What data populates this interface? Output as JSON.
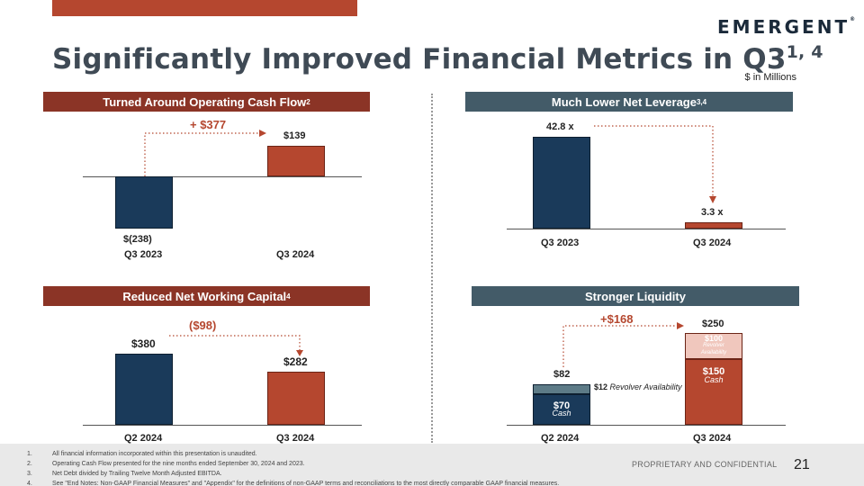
{
  "header": {
    "logo_text": "EMERGENT",
    "logo_mark": "®",
    "title": "Significantly Improved Financial Metrics in Q3",
    "title_sup": "1, 4",
    "units": "$ in Millions"
  },
  "panels": {
    "ocf": {
      "title": "Turned Around Operating Cash Flow",
      "title_sup": "2",
      "delta": "+ $377",
      "value_labels": [
        "$(238)",
        "$139"
      ],
      "categories": [
        "Q3 2023",
        "Q3 2024"
      ]
    },
    "leverage": {
      "title": "Much Lower Net Leverage",
      "title_sup": "3,4",
      "value_labels": [
        "42.8 x",
        "3.3 x"
      ],
      "categories": [
        "Q3 2023",
        "Q3 2024"
      ]
    },
    "nwc": {
      "title": "Reduced Net Working Capital",
      "title_sup": "4",
      "delta": "($98)",
      "value_labels": [
        "$380",
        "$282"
      ],
      "categories": [
        "Q2 2024",
        "Q3 2024"
      ]
    },
    "liquidity": {
      "title": "Stronger Liquidity",
      "delta": "+$168",
      "q2_total": "$82",
      "q2_cash_value": "$70",
      "q2_cash_label": "Cash",
      "q2_revolver_value": "$12",
      "q2_revolver_label": "Revolver Availability",
      "q3_total": "$250",
      "q3_revolver_value": "$100",
      "q3_revolver_label_1": "Revolver",
      "q3_revolver_label_2": "Availability",
      "q3_cash_value": "$150",
      "q3_cash_label": "Cash",
      "categories": [
        "Q2 2024",
        "Q3 2024"
      ]
    }
  },
  "chart_data": [
    {
      "type": "bar",
      "title": "Turned Around Operating Cash Flow",
      "categories": [
        "Q3 2023",
        "Q3 2024"
      ],
      "values": [
        -238,
        139
      ],
      "annotation": "+ $377"
    },
    {
      "type": "bar",
      "title": "Much Lower Net Leverage",
      "categories": [
        "Q3 2023",
        "Q3 2024"
      ],
      "values": [
        42.8,
        3.3
      ],
      "unit": "x"
    },
    {
      "type": "bar",
      "title": "Reduced Net Working Capital",
      "categories": [
        "Q2 2024",
        "Q3 2024"
      ],
      "values": [
        380,
        282
      ],
      "annotation": "($98)"
    },
    {
      "type": "bar",
      "title": "Stronger Liquidity",
      "stacked": true,
      "categories": [
        "Q2 2024",
        "Q3 2024"
      ],
      "series": [
        {
          "name": "Cash",
          "values": [
            70,
            150
          ]
        },
        {
          "name": "Revolver Availability",
          "values": [
            12,
            100
          ]
        }
      ],
      "totals": [
        82,
        250
      ],
      "annotation": "+$168"
    }
  ],
  "footnotes": [
    {
      "num": "1.",
      "text": "All financial information incorporated within this presentation is unaudited."
    },
    {
      "num": "2.",
      "text": "Operating Cash Flow presented for the nine months ended September 30, 2024 and 2023."
    },
    {
      "num": "3.",
      "text": "Net Debt divided by Trailing Twelve Month Adjusted EBITDA."
    },
    {
      "num": "4.",
      "text": "See \"End Notes: Non-GAAP Financial Measures\" and \"Appendix\" for the definitions of non-GAAP terms and reconciliations to the most directly comparable GAAP financial measures."
    }
  ],
  "footer": {
    "confidential": "PROPRIETARY AND CONFIDENTIAL",
    "page_number": "21"
  },
  "colors": {
    "navy": "#1a3a5a",
    "rust": "#b5472f",
    "pink": "#f0c7bd",
    "slate": "#435b68",
    "title": "#3f4a55"
  }
}
